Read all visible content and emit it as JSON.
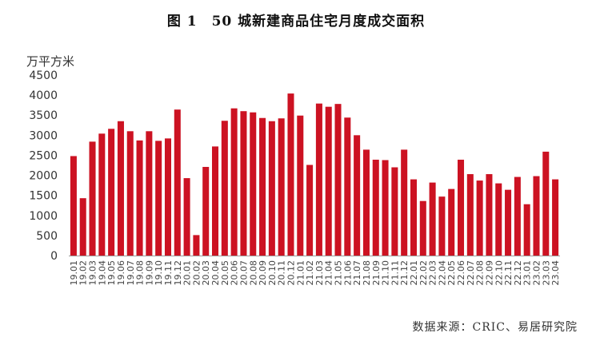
{
  "chart_data": {
    "type": "bar",
    "title": "图 1　50 城新建商品住宅月度成交面积",
    "ylabel": "万平方米",
    "xlabel": "",
    "ylim": [
      0,
      4500
    ],
    "yticks": [
      0,
      500,
      1000,
      1500,
      2000,
      2500,
      3000,
      3500,
      4000,
      4500
    ],
    "grid": false,
    "legend": "none",
    "bar_color": "#cc1222",
    "categories": [
      "19.01",
      "19.02",
      "19.03",
      "19.04",
      "19.05",
      "19.06",
      "19.07",
      "19.08",
      "19.09",
      "19.10",
      "19.11",
      "19.12",
      "20.01",
      "20.02",
      "20.03",
      "20.04",
      "20.05",
      "20.06",
      "20.07",
      "20.08",
      "20.09",
      "20.10",
      "20.11",
      "20.12",
      "21.01",
      "21.02",
      "21.03",
      "21.04",
      "21.05",
      "21.06",
      "21.07",
      "21.08",
      "21.09",
      "21.10",
      "21.11",
      "21.12",
      "22.01",
      "22.02",
      "22.03",
      "22.04",
      "22.05",
      "22.06",
      "22.07",
      "22.08",
      "22.09",
      "22.10",
      "22.11",
      "22.12",
      "23.01",
      "23.02",
      "23.03",
      "23.04"
    ],
    "values": [
      2480,
      1430,
      2840,
      3040,
      3160,
      3350,
      3100,
      2870,
      3100,
      2860,
      2920,
      3640,
      1930,
      510,
      2210,
      2720,
      3360,
      3670,
      3600,
      3570,
      3430,
      3350,
      3420,
      4040,
      3490,
      2260,
      3790,
      3710,
      3780,
      3440,
      3000,
      2640,
      2390,
      2380,
      2200,
      2640,
      1900,
      1360,
      1820,
      1470,
      1660,
      2390,
      2030,
      1870,
      2030,
      1800,
      1640,
      1960,
      1280,
      1980,
      2590,
      1900
    ]
  },
  "source": "数据来源：CRIC、易居研究院"
}
